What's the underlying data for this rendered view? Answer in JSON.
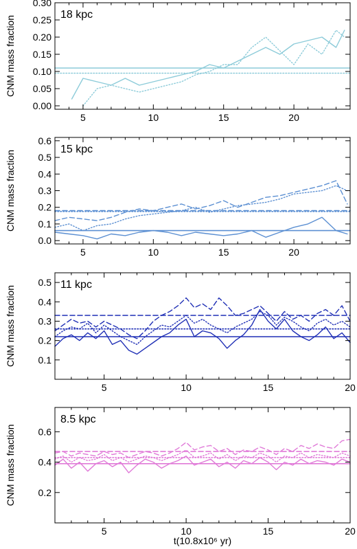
{
  "xlabel": "t(10.8x10⁶ yr)",
  "chart_data": [
    {
      "type": "line",
      "panel_label": "18 kpc",
      "color": "#8ccbd9",
      "ylabel": "CNM mass fraction",
      "xlim": [
        3,
        24
      ],
      "ylim": [
        -0.01,
        0.3
      ],
      "xticks": [
        5,
        10,
        15,
        20
      ],
      "yticks": [
        0.0,
        0.05,
        0.1,
        0.15,
        0.2,
        0.25,
        0.3
      ],
      "ytick_labels": [
        "0.00",
        "0.05",
        "0.10",
        "0.15",
        "0.20",
        "0.25",
        "0.30"
      ],
      "series": [
        {
          "style": "solid",
          "x": [
            4.2,
            5,
            6,
            7,
            8,
            9,
            10,
            11,
            12,
            13,
            14,
            15,
            16,
            17,
            18,
            19,
            20,
            21,
            22,
            23,
            23.6
          ],
          "values": [
            0.02,
            0.08,
            0.07,
            0.06,
            0.08,
            0.06,
            0.07,
            0.08,
            0.09,
            0.1,
            0.12,
            0.11,
            0.13,
            0.15,
            0.17,
            0.15,
            0.18,
            0.19,
            0.2,
            0.17,
            0.22
          ]
        },
        {
          "style": "dotted",
          "x": [
            5,
            6,
            7,
            8,
            9,
            10,
            11,
            12,
            13,
            14,
            15,
            16,
            17,
            18,
            19,
            20,
            21,
            22,
            23,
            23.6
          ],
          "values": [
            0.0,
            0.05,
            0.06,
            0.05,
            0.04,
            0.05,
            0.06,
            0.07,
            0.09,
            0.1,
            0.12,
            0.12,
            0.17,
            0.2,
            0.16,
            0.12,
            0.18,
            0.15,
            0.22,
            0.2
          ]
        },
        {
          "style": "mean-solid",
          "x": [
            3,
            24
          ],
          "values": [
            0.11,
            0.11
          ]
        },
        {
          "style": "mean-dotted",
          "x": [
            3,
            24
          ],
          "values": [
            0.095,
            0.095
          ]
        }
      ]
    },
    {
      "type": "line",
      "panel_label": "15 kpc",
      "color": "#5b8fd2",
      "ylabel": "CNM mass fraction",
      "xlim": [
        3,
        24
      ],
      "ylim": [
        -0.02,
        0.62
      ],
      "xticks": [
        5,
        10,
        15,
        20
      ],
      "yticks": [
        0.0,
        0.1,
        0.2,
        0.3,
        0.4,
        0.5,
        0.6
      ],
      "ytick_labels": [
        "0.0",
        "0.1",
        "0.2",
        "0.3",
        "0.4",
        "0.5",
        "0.6"
      ],
      "series": [
        {
          "style": "solid",
          "x": [
            3,
            4,
            5,
            6,
            7,
            8,
            9,
            10,
            11,
            12,
            13,
            14,
            15,
            16,
            17,
            18,
            19,
            20,
            21,
            22,
            23,
            23.8
          ],
          "values": [
            0.05,
            0.04,
            0.03,
            0.01,
            0.04,
            0.03,
            0.05,
            0.06,
            0.05,
            0.03,
            0.05,
            0.04,
            0.03,
            0.04,
            0.06,
            0.02,
            0.05,
            0.08,
            0.1,
            0.14,
            0.06,
            0.04
          ]
        },
        {
          "style": "dotted",
          "x": [
            3,
            4,
            5,
            6,
            7,
            8,
            9,
            10,
            11,
            12,
            13,
            14,
            15,
            16,
            17,
            18,
            19,
            20,
            21,
            22,
            23,
            23.8
          ],
          "values": [
            0.08,
            0.1,
            0.06,
            0.09,
            0.1,
            0.13,
            0.15,
            0.16,
            0.17,
            0.18,
            0.2,
            0.17,
            0.19,
            0.21,
            0.22,
            0.23,
            0.25,
            0.28,
            0.29,
            0.3,
            0.33,
            0.3
          ]
        },
        {
          "style": "dashed",
          "x": [
            3,
            4,
            5,
            6,
            7,
            8,
            9,
            10,
            11,
            12,
            13,
            14,
            15,
            16,
            17,
            18,
            19,
            20,
            21,
            22,
            23,
            23.8
          ],
          "values": [
            0.12,
            0.14,
            0.13,
            0.12,
            0.14,
            0.17,
            0.19,
            0.18,
            0.2,
            0.22,
            0.19,
            0.21,
            0.24,
            0.2,
            0.23,
            0.26,
            0.27,
            0.29,
            0.31,
            0.33,
            0.36,
            0.22
          ]
        },
        {
          "style": "mean-solid",
          "x": [
            3,
            24
          ],
          "values": [
            0.06,
            0.06
          ]
        },
        {
          "style": "mean-dashed",
          "x": [
            3,
            24
          ],
          "values": [
            0.18,
            0.18
          ]
        },
        {
          "style": "mean-dotted",
          "x": [
            3,
            24
          ],
          "values": [
            0.175,
            0.175
          ]
        }
      ]
    },
    {
      "type": "line",
      "panel_label": "11 kpc",
      "color": "#1f2fb5",
      "ylabel": "CNM mass fraction",
      "xlim": [
        2,
        20
      ],
      "ylim": [
        0.0,
        0.55
      ],
      "xticks": [
        5,
        10,
        15,
        20
      ],
      "yticks": [
        0.1,
        0.2,
        0.3,
        0.4,
        0.5
      ],
      "ytick_labels": [
        "0.1",
        "0.2",
        "0.3",
        "0.4",
        "0.5"
      ],
      "series": [
        {
          "style": "solid",
          "x": [
            2,
            2.5,
            3,
            3.5,
            4,
            4.5,
            5,
            5.5,
            6,
            6.5,
            7,
            7.5,
            8,
            8.5,
            9,
            9.5,
            10,
            10.5,
            11,
            11.5,
            12,
            12.5,
            13,
            13.5,
            14,
            14.5,
            15,
            15.5,
            16,
            16.5,
            17,
            17.5,
            18,
            18.5,
            19,
            19.5,
            20
          ],
          "values": [
            0.17,
            0.21,
            0.23,
            0.2,
            0.24,
            0.21,
            0.25,
            0.18,
            0.2,
            0.15,
            0.13,
            0.16,
            0.19,
            0.22,
            0.24,
            0.28,
            0.31,
            0.22,
            0.25,
            0.24,
            0.21,
            0.16,
            0.2,
            0.23,
            0.28,
            0.36,
            0.3,
            0.26,
            0.31,
            0.25,
            0.22,
            0.2,
            0.23,
            0.27,
            0.21,
            0.24,
            0.19
          ]
        },
        {
          "style": "dotted",
          "x": [
            2,
            2.5,
            3,
            3.5,
            4,
            4.5,
            5,
            5.5,
            6,
            6.5,
            7,
            7.5,
            8,
            8.5,
            9,
            9.5,
            10,
            10.5,
            11,
            11.5,
            12,
            12.5,
            13,
            13.5,
            14,
            14.5,
            15,
            15.5,
            16,
            16.5,
            17,
            17.5,
            18,
            18.5,
            19,
            19.5,
            20
          ],
          "values": [
            0.22,
            0.25,
            0.27,
            0.26,
            0.29,
            0.24,
            0.28,
            0.25,
            0.22,
            0.2,
            0.18,
            0.22,
            0.25,
            0.28,
            0.27,
            0.3,
            0.33,
            0.29,
            0.31,
            0.28,
            0.26,
            0.24,
            0.27,
            0.29,
            0.31,
            0.35,
            0.33,
            0.28,
            0.32,
            0.3,
            0.27,
            0.25,
            0.29,
            0.31,
            0.28,
            0.3,
            0.27
          ]
        },
        {
          "style": "dashed",
          "x": [
            2,
            2.5,
            3,
            3.5,
            4,
            4.5,
            5,
            5.5,
            6,
            6.5,
            7,
            7.5,
            8,
            8.5,
            9,
            9.5,
            10,
            10.5,
            11,
            11.5,
            12,
            12.5,
            13,
            13.5,
            14,
            14.5,
            15,
            15.5,
            16,
            16.5,
            17,
            17.5,
            18,
            18.5,
            19,
            19.5,
            20
          ],
          "values": [
            0.25,
            0.28,
            0.31,
            0.29,
            0.3,
            0.27,
            0.3,
            0.28,
            0.26,
            0.23,
            0.21,
            0.25,
            0.3,
            0.33,
            0.35,
            0.38,
            0.42,
            0.37,
            0.39,
            0.36,
            0.42,
            0.38,
            0.33,
            0.34,
            0.36,
            0.38,
            0.34,
            0.3,
            0.35,
            0.31,
            0.33,
            0.3,
            0.34,
            0.36,
            0.33,
            0.38,
            0.3
          ]
        },
        {
          "style": "mean-solid",
          "x": [
            2,
            20
          ],
          "values": [
            0.22,
            0.22
          ]
        },
        {
          "style": "mean-dotted",
          "x": [
            2,
            20
          ],
          "values": [
            0.26,
            0.26
          ]
        },
        {
          "style": "mean-dashed",
          "x": [
            2,
            20
          ],
          "values": [
            0.33,
            0.33
          ]
        }
      ]
    },
    {
      "type": "line",
      "panel_label": "8.5 kpc",
      "color": "#e07ad8",
      "ylabel": "CNM mass fraction",
      "xlim": [
        2,
        20
      ],
      "ylim": [
        0.0,
        0.76
      ],
      "xticks": [
        5,
        10,
        15,
        20
      ],
      "yticks": [
        0.2,
        0.4,
        0.6
      ],
      "ytick_labels": [
        "0.2",
        "0.4",
        "0.6"
      ],
      "series": [
        {
          "style": "solid",
          "x": [
            2,
            2.5,
            3,
            3.5,
            4,
            4.5,
            5,
            5.5,
            6,
            6.5,
            7,
            7.5,
            8,
            8.5,
            9,
            9.5,
            10,
            10.5,
            11,
            11.5,
            12,
            12.5,
            13,
            13.5,
            14,
            14.5,
            15,
            15.5,
            16,
            16.5,
            17,
            17.5,
            18,
            18.5,
            19,
            19.5,
            20
          ],
          "values": [
            0.38,
            0.42,
            0.36,
            0.4,
            0.34,
            0.39,
            0.41,
            0.37,
            0.4,
            0.33,
            0.38,
            0.42,
            0.4,
            0.36,
            0.39,
            0.41,
            0.44,
            0.38,
            0.4,
            0.42,
            0.37,
            0.4,
            0.36,
            0.41,
            0.39,
            0.43,
            0.4,
            0.35,
            0.4,
            0.38,
            0.42,
            0.39,
            0.41,
            0.4,
            0.38,
            0.42,
            0.4
          ]
        },
        {
          "style": "dotted",
          "x": [
            2,
            2.5,
            3,
            3.5,
            4,
            4.5,
            5,
            5.5,
            6,
            6.5,
            7,
            7.5,
            8,
            8.5,
            9,
            9.5,
            10,
            10.5,
            11,
            11.5,
            12,
            12.5,
            13,
            13.5,
            14,
            14.5,
            15,
            15.5,
            16,
            16.5,
            17,
            17.5,
            18,
            18.5,
            19,
            19.5,
            20
          ],
          "values": [
            0.42,
            0.44,
            0.4,
            0.43,
            0.41,
            0.42,
            0.45,
            0.41,
            0.43,
            0.4,
            0.42,
            0.44,
            0.43,
            0.41,
            0.43,
            0.45,
            0.48,
            0.43,
            0.44,
            0.46,
            0.42,
            0.45,
            0.41,
            0.44,
            0.43,
            0.46,
            0.44,
            0.4,
            0.44,
            0.43,
            0.46,
            0.43,
            0.45,
            0.44,
            0.43,
            0.46,
            0.44
          ]
        },
        {
          "style": "dashed",
          "x": [
            2,
            2.5,
            3,
            3.5,
            4,
            4.5,
            5,
            5.5,
            6,
            6.5,
            7,
            7.5,
            8,
            8.5,
            9,
            9.5,
            10,
            10.5,
            11,
            11.5,
            12,
            12.5,
            13,
            13.5,
            14,
            14.5,
            15,
            15.5,
            16,
            16.5,
            17,
            17.5,
            18,
            18.5,
            19,
            19.5,
            20
          ],
          "values": [
            0.46,
            0.47,
            0.44,
            0.46,
            0.45,
            0.44,
            0.47,
            0.45,
            0.46,
            0.43,
            0.45,
            0.47,
            0.46,
            0.44,
            0.46,
            0.49,
            0.53,
            0.48,
            0.5,
            0.51,
            0.47,
            0.49,
            0.45,
            0.48,
            0.47,
            0.5,
            0.48,
            0.45,
            0.49,
            0.47,
            0.51,
            0.49,
            0.52,
            0.5,
            0.49,
            0.54,
            0.55
          ]
        },
        {
          "style": "mean-solid",
          "x": [
            2,
            20
          ],
          "values": [
            0.39,
            0.39
          ]
        },
        {
          "style": "mean-dotted",
          "x": [
            2,
            20
          ],
          "values": [
            0.43,
            0.43
          ]
        },
        {
          "style": "mean-dashed",
          "x": [
            2,
            20
          ],
          "values": [
            0.47,
            0.47
          ]
        }
      ]
    }
  ]
}
